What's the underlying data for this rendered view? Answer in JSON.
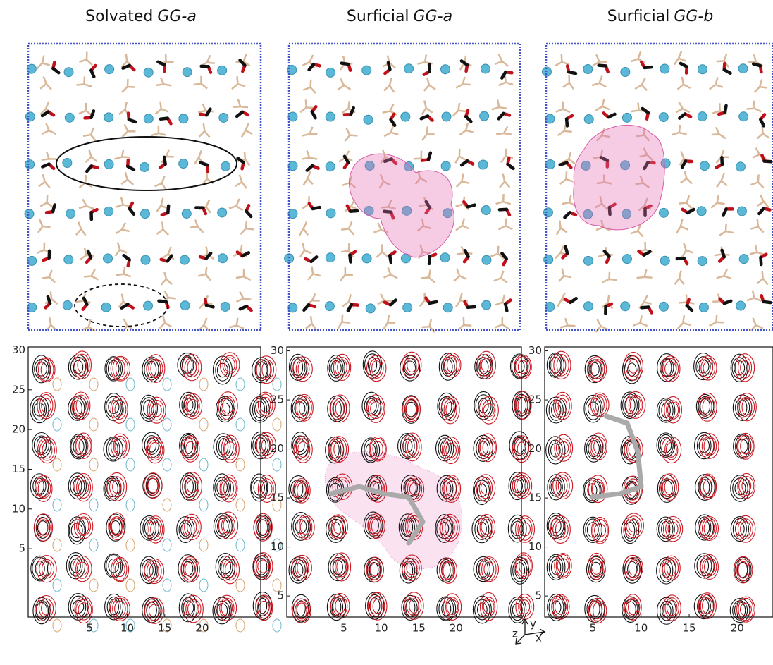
{
  "panels": [
    {
      "title": "Solvated",
      "title_emphasis": "GG-a",
      "plot": {
        "xlim": [
          -3.2,
          27.8
        ],
        "ylim": [
          -3.6,
          30.4
        ],
        "xticks": [
          5,
          10,
          15,
          20
        ],
        "yticks": [
          5,
          10,
          15,
          20,
          25,
          30
        ]
      }
    },
    {
      "title": "Surficial",
      "title_emphasis": "GG-a",
      "plot": {
        "xlim": [
          -2.6,
          28.7
        ],
        "ylim": [
          2.85,
          30.4
        ],
        "xticks": [
          5,
          10,
          15,
          20
        ],
        "yticks": [
          5,
          10,
          15,
          20,
          25,
          30
        ]
      }
    },
    {
      "title": "Surficial",
      "title_emphasis": "GG-b",
      "plot": {
        "xlim": [
          0,
          23.7
        ],
        "ylim": [
          2.85,
          30.4
        ],
        "xticks": [
          5,
          10,
          15,
          20
        ],
        "yticks": [
          5,
          10,
          15,
          20,
          25,
          30
        ]
      }
    }
  ],
  "axis_triad": {
    "x": "x",
    "y": "y",
    "z": "z"
  }
}
